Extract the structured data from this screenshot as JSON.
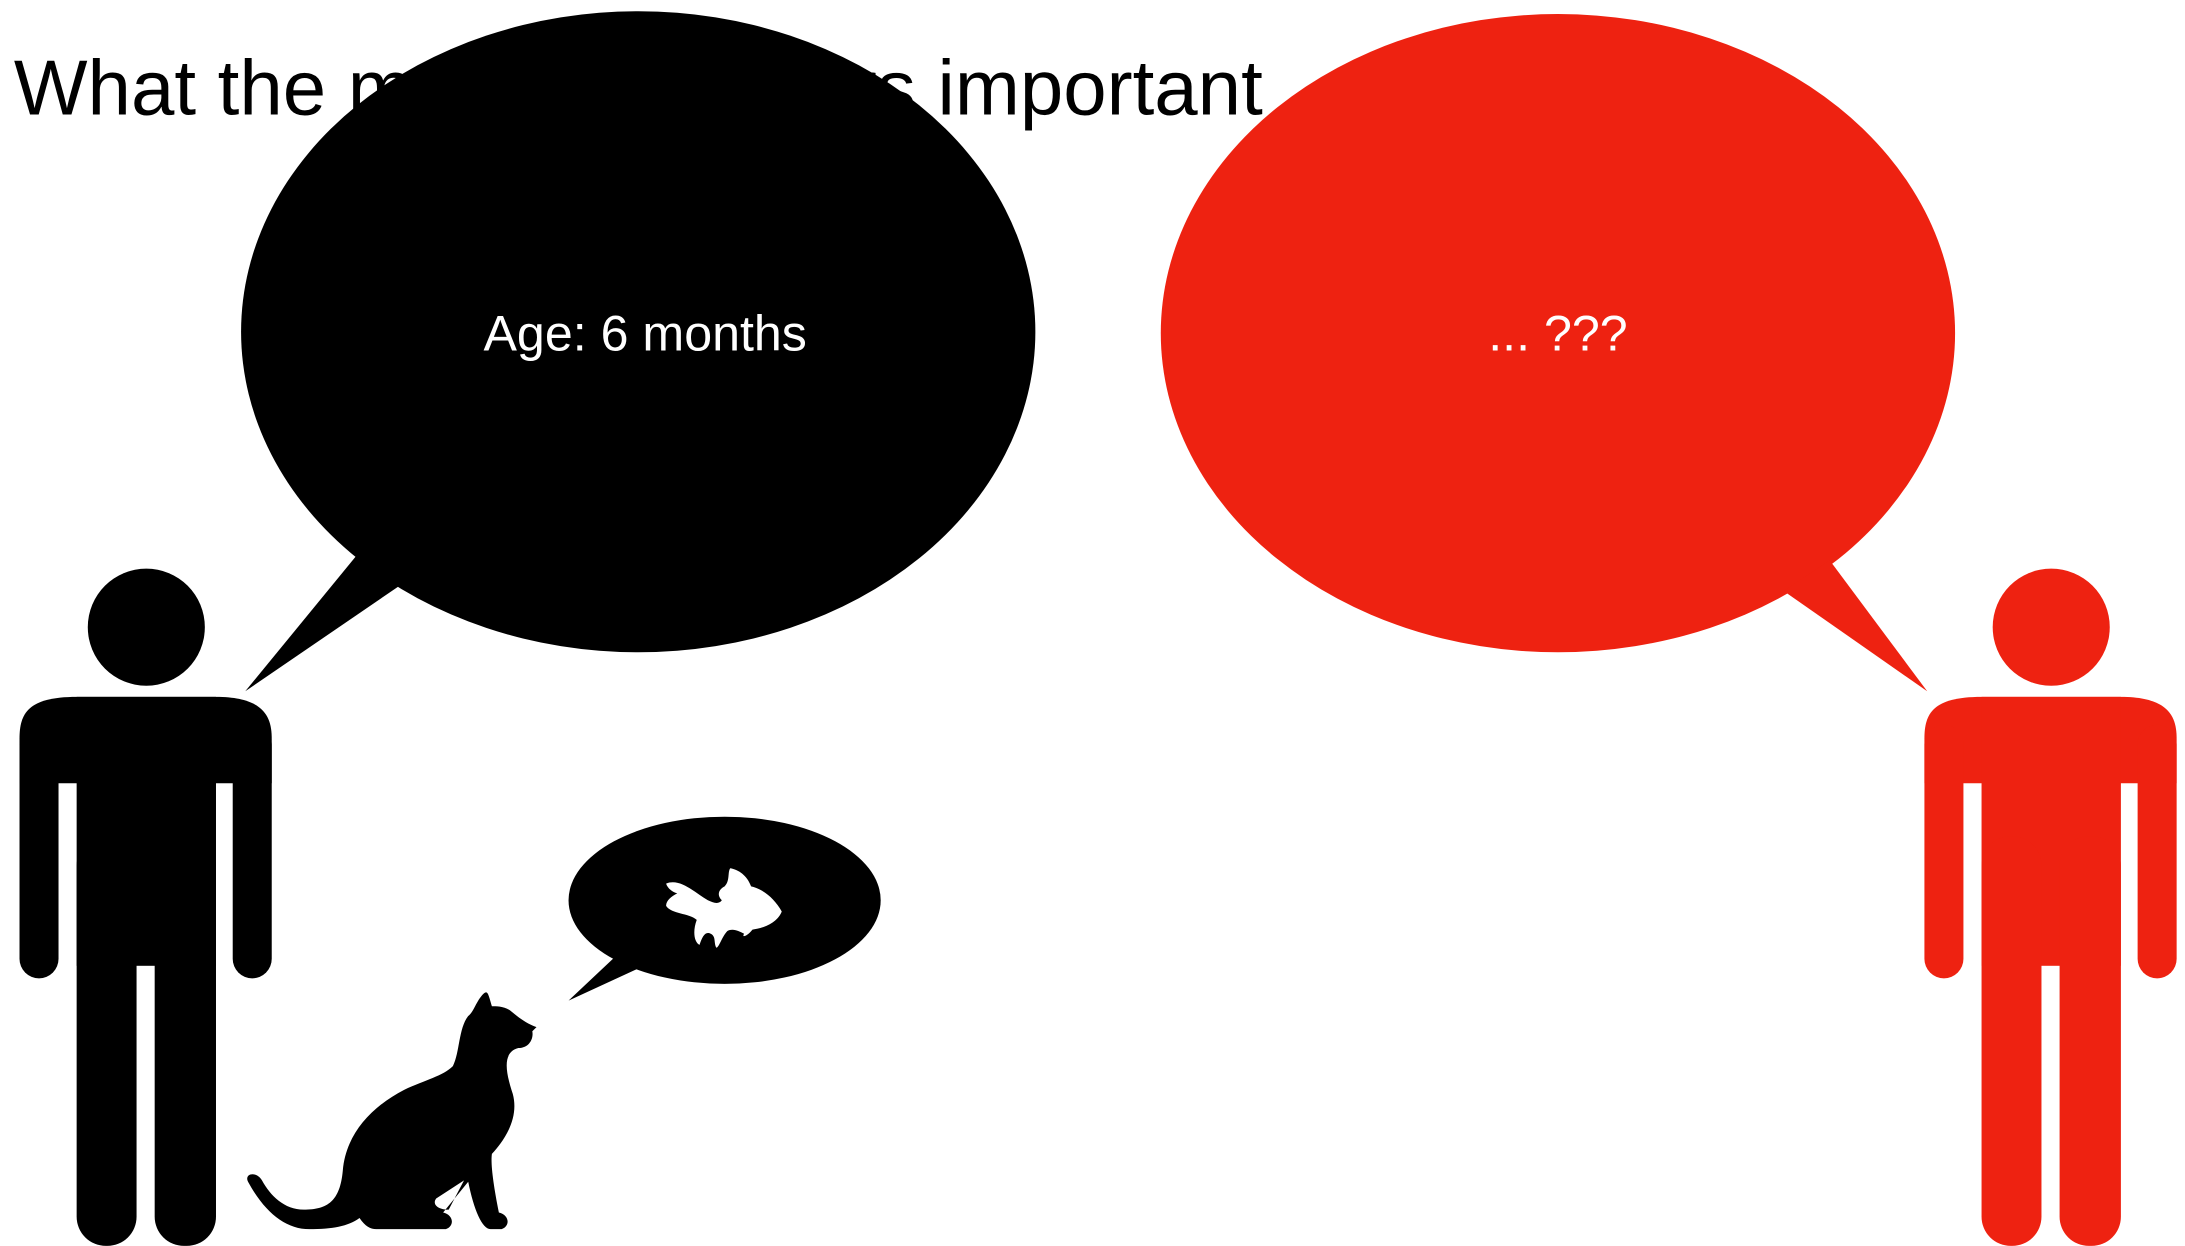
{
  "title": "What the model considers important",
  "left_bubble": {
    "text": "Age: 6 months"
  },
  "right_bubble": {
    "text": "... ???"
  }
}
